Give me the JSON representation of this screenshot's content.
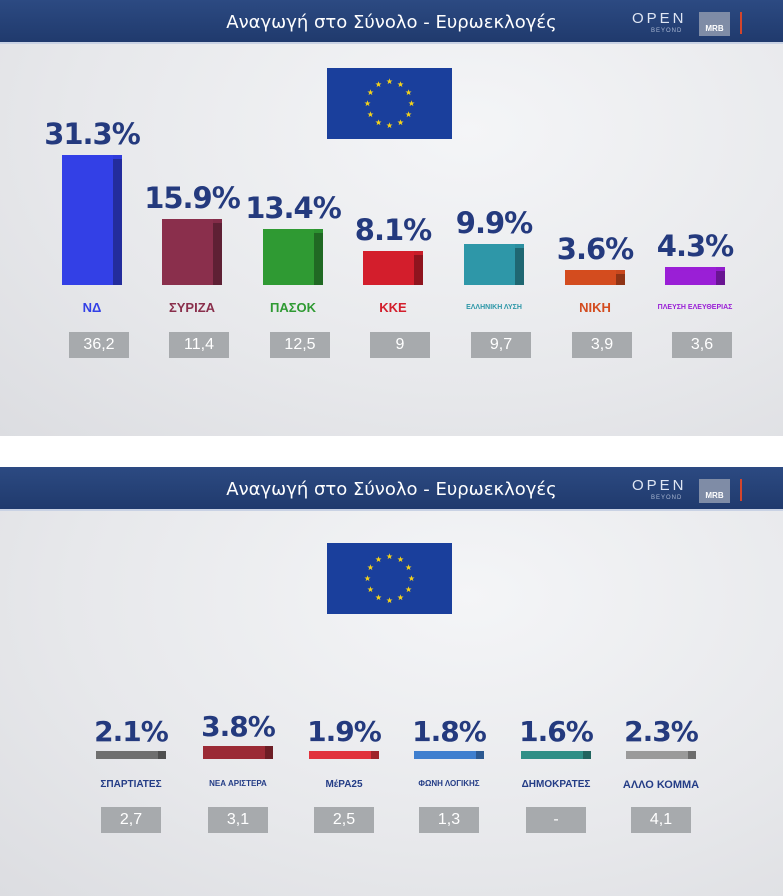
{
  "panels": [
    {
      "title": "Αναγωγή στο Σύνολο - Ευρωεκλογές",
      "logo_open": "OPEN",
      "logo_beyond": "BEYOND",
      "logo_mrb": "MRB"
    },
    {
      "title": "Αναγωγή στο Σύνολο - Ευρωεκλογές",
      "logo_open": "OPEN",
      "logo_beyond": "BEYOND",
      "logo_mrb": "MRB"
    }
  ],
  "chart_data": [
    {
      "type": "bar",
      "categories": [
        "ΝΔ",
        "ΣΥΡΙΖΑ",
        "ΠΑΣΟΚ",
        "ΚΚΕ",
        "ΕΛΛΗΝΙΚΗ ΛΥΣΗ",
        "ΝΙΚΗ",
        "ΠΛΕΥΣΗ ΕΛΕΥΘΕΡΙΑΣ"
      ],
      "values": [
        31.3,
        15.9,
        13.4,
        8.1,
        9.9,
        3.6,
        4.3
      ],
      "value_labels": [
        "31.3%",
        "15.9%",
        "13.4%",
        "8.1%",
        "9.9%",
        "3.6%",
        "4.3%"
      ],
      "previous": [
        "36,2",
        "11,4",
        "12,5",
        "9",
        "9,7",
        "3,9",
        "3,6"
      ],
      "colors": [
        "#3340e6",
        "#8a2f4c",
        "#2f9a33",
        "#d31e2c",
        "#2e97a8",
        "#d34c1f",
        "#9a1fd6"
      ],
      "logo_text": [
        "ΝΔ",
        "ΣΥΡΙΖΑ",
        "ΠΑΣΟΚ",
        "ΚΚΕ",
        "ΕΛΛΗΝΙΚΗ ΛΥΣΗ",
        "ΝΙΚΗ",
        "ΠΛΕΥΣΗ ΕΛΕΥΘΕΡΙΑΣ"
      ],
      "ylim": [
        0,
        31.3
      ]
    },
    {
      "type": "bar",
      "categories": [
        "ΣΠΑΡΤΙΑΤΕΣ",
        "ΝΕΑ ΑΡΙΣΤΕΡΑ",
        "ΜέΡΑ25",
        "ΦΩΝΗ ΛΟΓΙΚΗΣ",
        "ΔΗΜΟΚΡΑΤΕΣ",
        "ΑΛΛΟ ΚΟΜΜΑ"
      ],
      "values": [
        2.1,
        3.8,
        1.9,
        1.8,
        1.6,
        2.3
      ],
      "value_labels": [
        "2.1%",
        "3.8%",
        "1.9%",
        "1.8%",
        "1.6%",
        "2.3%"
      ],
      "previous": [
        "2,7",
        "3,1",
        "2,5",
        "1,3",
        "-",
        "4,1"
      ],
      "colors": [
        "#6f6f6f",
        "#9b2a35",
        "#e1323c",
        "#3f7fcf",
        "#2f8f86",
        "#9a9a9a"
      ],
      "logo_text": [
        "ΣΠΑΡΤΙΑΤΕΣ",
        "ΝΕΑ ΑΡΙΣΤΕΡΑ",
        "ΜέΡΑ25",
        "ΦΩΝΗ ΛΟΓΙΚΗΣ",
        "ΔΗΜΟΚΡΑΤΕΣ",
        "ΑΛΛΟ ΚΟΜΜΑ"
      ]
    }
  ]
}
